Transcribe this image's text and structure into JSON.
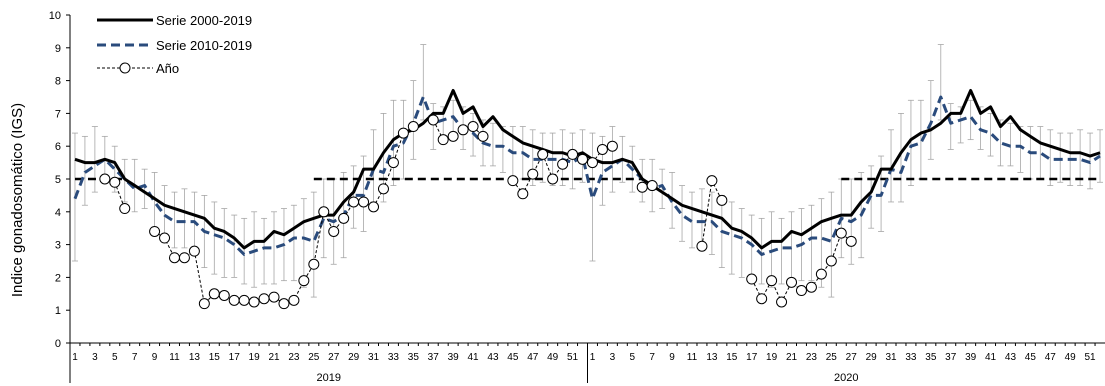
{
  "chart_data": {
    "type": "line",
    "title": "",
    "ylabel": "Indice gonadosomático (IGS)",
    "xlabel": "",
    "ylim": [
      0,
      10
    ],
    "yticks": [
      0,
      1,
      2,
      3,
      4,
      5,
      6,
      7,
      8,
      9,
      10
    ],
    "x_tick_labels": [
      "1",
      "3",
      "5",
      "7",
      "9",
      "11",
      "13",
      "15",
      "17",
      "19",
      "21",
      "23",
      "25",
      "27",
      "29",
      "31",
      "33",
      "35",
      "37",
      "39",
      "41",
      "43",
      "45",
      "47",
      "49",
      "51",
      "1",
      "3",
      "5",
      "7",
      "9",
      "11",
      "13",
      "15",
      "17",
      "19",
      "21",
      "23",
      "25",
      "27",
      "29",
      "31",
      "33",
      "35",
      "37",
      "39",
      "41",
      "43",
      "45",
      "47",
      "49",
      "51"
    ],
    "years": [
      {
        "label": "2019",
        "start_week": 1,
        "end_week": 52
      },
      {
        "label": "2020",
        "start_week": 53,
        "end_week": 104
      }
    ],
    "reference_line": {
      "value": 5,
      "segments": [
        [
          1,
          6
        ],
        [
          25,
          58
        ],
        [
          78,
          104
        ]
      ]
    },
    "legend_position": "top-left",
    "colors": {
      "serie_2000_2019": "#000000",
      "serie_2010_2019": "#2a4b7c",
      "anio": "#000000",
      "error_bars": "#a6a6a6"
    },
    "series": [
      {
        "name": "Serie 2000-2019",
        "style": "solid",
        "values": [
          5.6,
          5.5,
          5.5,
          5.6,
          5.5,
          5.0,
          4.8,
          4.6,
          4.4,
          4.2,
          4.1,
          4.0,
          3.9,
          3.8,
          3.5,
          3.4,
          3.2,
          2.9,
          3.1,
          3.1,
          3.4,
          3.3,
          3.5,
          3.7,
          3.8,
          3.9,
          3.9,
          4.3,
          4.6,
          5.3,
          5.3,
          5.8,
          6.2,
          6.4,
          6.5,
          6.7,
          7.0,
          7.0,
          7.7,
          7.0,
          7.2,
          6.6,
          6.9,
          6.5,
          6.3,
          6.1,
          6.0,
          5.9,
          5.8,
          5.8,
          5.7,
          5.8,
          5.6,
          5.5,
          5.5,
          5.6,
          5.5,
          5.0,
          4.8,
          4.6,
          4.4,
          4.2,
          4.1,
          4.0,
          3.9,
          3.8,
          3.5,
          3.4,
          3.2,
          2.9,
          3.1,
          3.1,
          3.4,
          3.3,
          3.5,
          3.7,
          3.8,
          3.9,
          3.9,
          4.3,
          4.6,
          5.3,
          5.3,
          5.8,
          6.2,
          6.4,
          6.5,
          6.7,
          7.0,
          7.0,
          7.7,
          7.0,
          7.2,
          6.6,
          6.9,
          6.5,
          6.3,
          6.1,
          6.0,
          5.9,
          5.8,
          5.8,
          5.7,
          5.8
        ]
      },
      {
        "name": "Serie 2010-2019",
        "style": "dashed",
        "values": [
          4.4,
          5.2,
          5.4,
          5.6,
          5.3,
          5.0,
          4.7,
          4.8,
          4.3,
          3.9,
          3.7,
          3.7,
          3.7,
          3.4,
          3.3,
          3.2,
          3.0,
          2.7,
          2.8,
          2.9,
          2.9,
          3.0,
          3.2,
          3.2,
          3.1,
          3.8,
          3.7,
          3.9,
          4.5,
          4.5,
          5.3,
          5.2,
          6.0,
          6.1,
          6.7,
          7.5,
          6.7,
          6.8,
          6.9,
          6.5,
          6.4,
          6.1,
          6.0,
          6.0,
          5.8,
          5.8,
          5.6,
          5.6,
          5.6,
          5.6,
          5.5,
          5.7,
          4.4,
          5.2,
          5.4,
          5.6,
          5.3,
          5.0,
          4.7,
          4.8,
          4.3,
          3.9,
          3.7,
          3.7,
          3.7,
          3.4,
          3.3,
          3.2,
          3.0,
          2.7,
          2.8,
          2.9,
          2.9,
          3.0,
          3.2,
          3.2,
          3.1,
          3.8,
          3.7,
          3.9,
          4.5,
          4.5,
          5.3,
          5.2,
          6.0,
          6.1,
          6.7,
          7.5,
          6.7,
          6.8,
          6.9,
          6.5,
          6.4,
          6.1,
          6.0,
          6.0,
          5.8,
          5.8,
          5.6,
          5.6,
          5.6,
          5.6,
          5.5,
          5.7
        ],
        "error_upper": [
          6.4,
          6.3,
          6.6,
          6.3,
          6.0,
          5.6,
          5.6,
          5.3,
          5.2,
          4.8,
          4.6,
          4.7,
          4.6,
          4.5,
          4.3,
          4.1,
          3.9,
          3.8,
          4.0,
          3.8,
          4.0,
          4.1,
          4.2,
          4.4,
          4.6,
          5.0,
          5.0,
          5.2,
          5.4,
          5.7,
          6.5,
          7.0,
          7.4,
          7.4,
          8.0,
          9.1,
          7.3,
          7.2,
          7.4,
          7.2,
          7.0,
          6.8,
          6.7,
          6.6,
          6.6,
          6.6,
          6.5,
          6.4,
          6.4,
          6.5,
          6.4,
          6.5,
          6.4,
          6.3,
          6.6,
          6.3,
          6.0,
          5.6,
          5.6,
          5.3,
          5.2,
          4.8,
          4.6,
          4.7,
          4.6,
          4.5,
          4.3,
          4.1,
          3.9,
          3.8,
          4.0,
          3.8,
          4.0,
          4.1,
          4.2,
          4.4,
          4.6,
          5.0,
          5.0,
          5.2,
          5.4,
          5.7,
          6.5,
          7.0,
          7.4,
          7.4,
          8.0,
          9.1,
          7.3,
          7.2,
          7.4,
          7.2,
          7.0,
          6.8,
          6.7,
          6.6,
          6.6,
          6.6,
          6.5,
          6.4,
          6.4,
          6.5,
          6.4,
          6.5
        ],
        "error_lower": [
          2.5,
          4.2,
          4.6,
          4.9,
          4.6,
          4.3,
          4.0,
          4.1,
          3.5,
          3.1,
          2.9,
          2.9,
          2.7,
          2.3,
          2.1,
          2.0,
          2.0,
          1.8,
          1.7,
          1.8,
          1.8,
          1.9,
          1.9,
          1.7,
          1.4,
          2.6,
          2.4,
          2.6,
          3.5,
          3.4,
          4.3,
          4.3,
          4.8,
          5.0,
          5.6,
          6.8,
          5.9,
          6.1,
          6.2,
          5.9,
          5.7,
          5.4,
          5.4,
          5.2,
          5.0,
          5.0,
          4.8,
          4.9,
          4.8,
          4.8,
          4.7,
          4.9,
          2.5,
          4.2,
          4.6,
          4.9,
          4.6,
          4.3,
          4.0,
          4.1,
          3.5,
          3.1,
          2.9,
          2.9,
          2.7,
          2.3,
          2.1,
          2.0,
          2.0,
          1.8,
          1.7,
          1.8,
          1.8,
          1.9,
          1.9,
          1.7,
          1.4,
          2.6,
          2.4,
          2.6,
          3.5,
          3.4,
          4.3,
          4.3,
          4.8,
          5.0,
          5.6,
          6.8,
          5.9,
          6.1,
          6.2,
          5.9,
          5.7,
          5.4,
          5.4,
          5.2,
          5.0,
          5.0,
          4.8,
          4.9,
          4.8,
          4.8,
          4.7,
          4.9
        ]
      },
      {
        "name": "Año",
        "style": "dotted-markers",
        "values": [
          null,
          null,
          null,
          5.0,
          4.9,
          4.1,
          null,
          null,
          3.4,
          3.2,
          2.6,
          2.6,
          2.8,
          1.2,
          1.5,
          1.45,
          1.3,
          1.3,
          1.25,
          1.35,
          1.4,
          1.2,
          1.3,
          1.9,
          2.4,
          4.0,
          3.4,
          3.8,
          4.3,
          4.3,
          4.15,
          4.7,
          5.5,
          6.4,
          6.6,
          null,
          6.8,
          6.2,
          6.3,
          6.5,
          6.6,
          6.3,
          null,
          null,
          4.95,
          4.55,
          5.15,
          5.75,
          5.0,
          5.45,
          5.75,
          5.6,
          5.5,
          5.9,
          6.0,
          null,
          null,
          4.75,
          4.8,
          null,
          null,
          null,
          null,
          2.95,
          4.95,
          4.35,
          null,
          null,
          1.95,
          1.35,
          1.9,
          1.25,
          1.85,
          1.6,
          1.7,
          2.1,
          2.5,
          3.35,
          3.1,
          null,
          null,
          null,
          null,
          null,
          null,
          null,
          null,
          null,
          null,
          null,
          null,
          null,
          null,
          null,
          null,
          null,
          null,
          null,
          null,
          null,
          null,
          null,
          null,
          null
        ]
      }
    ]
  }
}
